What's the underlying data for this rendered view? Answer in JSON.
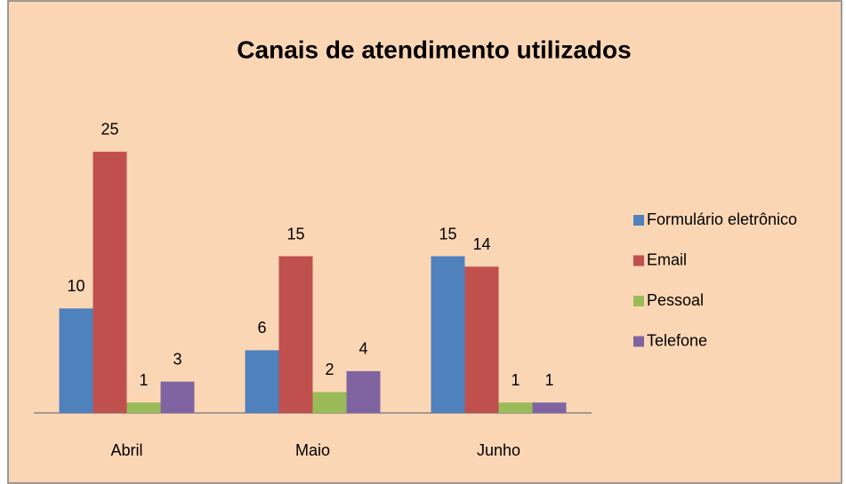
{
  "chart_data": {
    "type": "bar",
    "title": "Canais de atendimento utilizados",
    "categories": [
      "Abril",
      "Maio",
      "Junho"
    ],
    "series": [
      {
        "name": "Formulário eletrônico",
        "color": "#4f81bd",
        "values": [
          10,
          6,
          15
        ]
      },
      {
        "name": "Email",
        "color": "#c0504d",
        "values": [
          25,
          15,
          14
        ]
      },
      {
        "name": "Pessoal",
        "color": "#9bbb59",
        "values": [
          1,
          2,
          1
        ]
      },
      {
        "name": "Telefone",
        "color": "#8064a2",
        "values": [
          3,
          4,
          1
        ]
      }
    ],
    "ylim": [
      0,
      30
    ],
    "legend": "right"
  }
}
